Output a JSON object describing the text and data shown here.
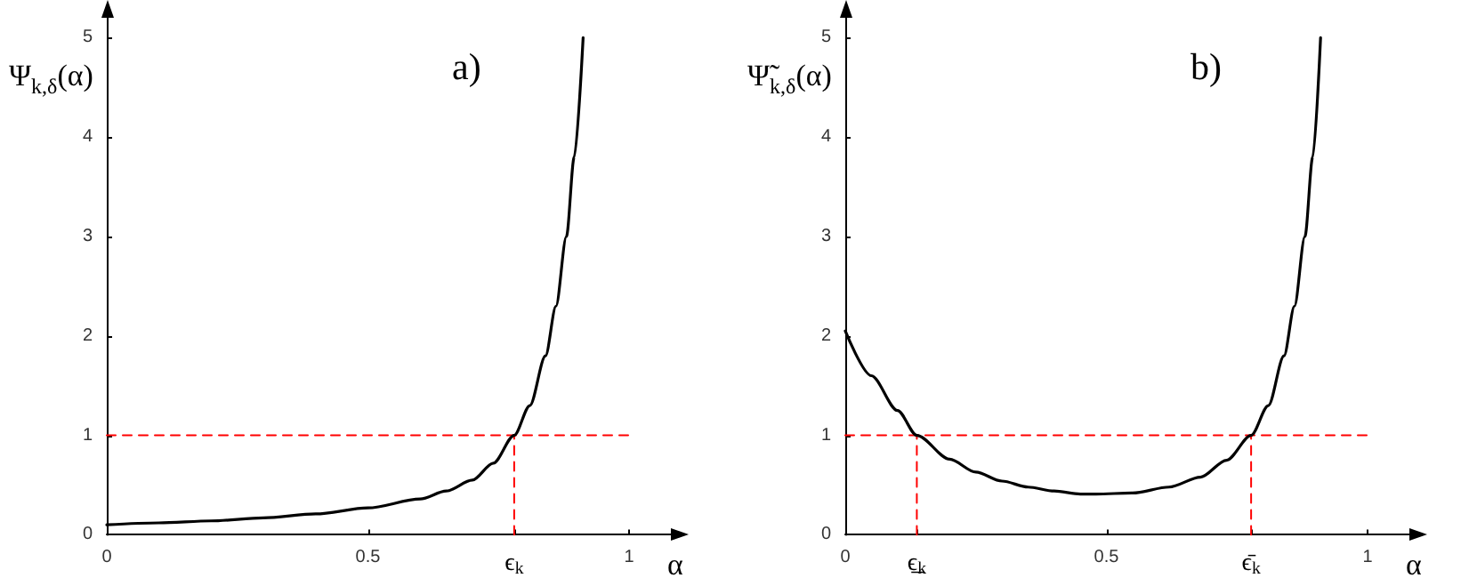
{
  "chart_data": [
    {
      "type": "line",
      "title": "a)",
      "xlabel": "α",
      "ylabel": "Ψ$_{k,δ}$(α)",
      "marker": "none",
      "xlim": [
        0,
        1.08
      ],
      "ylim": [
        0,
        5.2
      ],
      "xticks": [
        0,
        0.5,
        {
          "value": 0.78,
          "label": "ϵ$_{k}$"
        },
        1
      ],
      "yticks": [
        0,
        1,
        2,
        3,
        4,
        5
      ],
      "series": [
        {
          "color": "#000000",
          "line_style": "solid",
          "x": [
            0,
            0.1,
            0.2,
            0.3,
            0.4,
            0.5,
            0.6,
            0.65,
            0.7,
            0.74,
            0.78,
            0.81,
            0.84,
            0.86,
            0.88,
            0.895,
            0.912
          ],
          "values": [
            0.1,
            0.12,
            0.14,
            0.17,
            0.21,
            0.27,
            0.36,
            0.44,
            0.55,
            0.72,
            1.0,
            1.3,
            1.8,
            2.3,
            3.0,
            3.8,
            5.0
          ]
        },
        {
          "color": "#ff0000",
          "line_style": "dashed",
          "x": [
            0,
            1
          ],
          "values": [
            1,
            1
          ]
        },
        {
          "color": "#ff0000",
          "line_style": "dashed",
          "x": [
            0.78,
            0.78
          ],
          "values": [
            0,
            1
          ]
        }
      ]
    },
    {
      "type": "line",
      "title": "b)",
      "xlabel": "α",
      "ylabel": "Ψ̃$_{k,δ}$(α)",
      "marker": "none",
      "xlim": [
        0,
        1.08
      ],
      "ylim": [
        0,
        5.2
      ],
      "xticks": [
        0,
        {
          "value": 0.137,
          "label": "ϵ̲$_{k}$"
        },
        0.5,
        {
          "value": 0.777,
          "label": "ϵ̄$_{k}$"
        },
        1
      ],
      "yticks": [
        0,
        1,
        2,
        3,
        4,
        5
      ],
      "series": [
        {
          "color": "#000000",
          "line_style": "solid",
          "x": [
            0,
            0.05,
            0.1,
            0.137,
            0.2,
            0.25,
            0.3,
            0.35,
            0.4,
            0.45,
            0.48,
            0.55,
            0.62,
            0.68,
            0.73,
            0.777,
            0.81,
            0.84,
            0.86,
            0.88,
            0.895,
            0.91
          ],
          "values": [
            2.05,
            1.6,
            1.25,
            1.0,
            0.76,
            0.63,
            0.54,
            0.48,
            0.44,
            0.41,
            0.41,
            0.42,
            0.48,
            0.58,
            0.75,
            1.0,
            1.3,
            1.8,
            2.3,
            3.0,
            3.8,
            5.0
          ]
        },
        {
          "color": "#ff0000",
          "line_style": "dashed",
          "x": [
            0,
            1
          ],
          "values": [
            1,
            1
          ]
        },
        {
          "color": "#ff0000",
          "line_style": "dashed",
          "x": [
            0.137,
            0.137
          ],
          "values": [
            0,
            1
          ]
        },
        {
          "color": "#ff0000",
          "line_style": "dashed",
          "x": [
            0.777,
            0.777
          ],
          "values": [
            0,
            1
          ]
        }
      ]
    }
  ]
}
